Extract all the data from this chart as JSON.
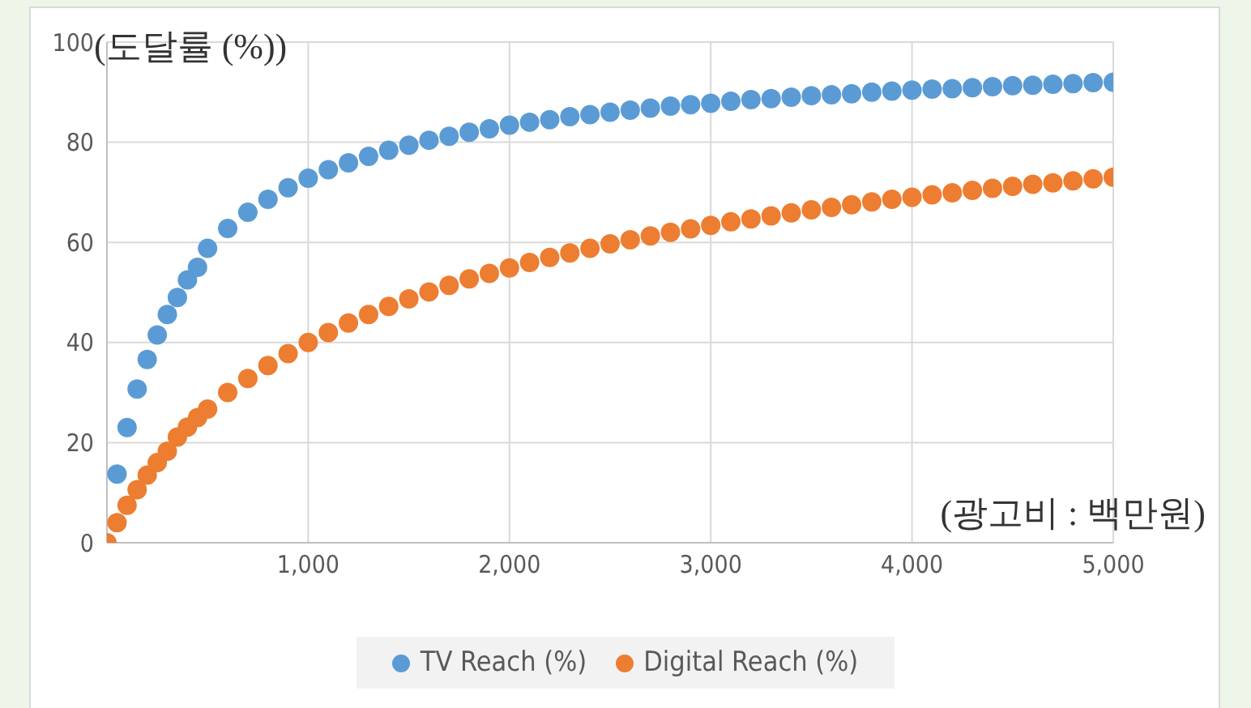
{
  "chart_data": {
    "type": "scatter",
    "xlabel": "(광고비 : 백만원)",
    "ylabel": "(도달률 (%))",
    "xlim": [
      0,
      5000
    ],
    "xticks": [
      {
        "value": 1000,
        "label": "1,000"
      },
      {
        "value": 2000,
        "label": "2,000"
      },
      {
        "value": 3000,
        "label": "3,000"
      },
      {
        "value": 4000,
        "label": "4,000"
      },
      {
        "value": 5000,
        "label": "5,000"
      }
    ],
    "ylim": [
      0,
      100
    ],
    "yticks": [
      0,
      20,
      40,
      60,
      80,
      100
    ],
    "grid": true,
    "legend": "bottom",
    "marker": "circle",
    "series": [
      {
        "name": "TV Reach (%)",
        "color": "#5b9bd5",
        "x": [
          50,
          100,
          150,
          200,
          250,
          300,
          350,
          400,
          450,
          500,
          600,
          700,
          800,
          900,
          1000,
          1100,
          1200,
          1300,
          1400,
          1500,
          1600,
          1700,
          1800,
          1900,
          2000,
          2100,
          2200,
          2300,
          2400,
          2500,
          2600,
          2700,
          2800,
          2900,
          3000,
          3100,
          3200,
          3300,
          3400,
          3500,
          3600,
          3700,
          3800,
          3900,
          4000,
          4100,
          4200,
          4300,
          4400,
          4500,
          4600,
          4700,
          4800,
          4900,
          5000
        ],
        "values": [
          13.7,
          23,
          30.7,
          36.6,
          41.5,
          45.6,
          49,
          52.5,
          55,
          58.8,
          62.8,
          66,
          68.6,
          70.9,
          72.8,
          74.5,
          75.9,
          77.2,
          78.4,
          79.4,
          80.4,
          81.2,
          82,
          82.7,
          83.4,
          84,
          84.5,
          85.1,
          85.5,
          86,
          86.4,
          86.8,
          87.2,
          87.5,
          87.8,
          88.2,
          88.5,
          88.7,
          89,
          89.3,
          89.5,
          89.7,
          90,
          90.2,
          90.4,
          90.6,
          90.7,
          90.9,
          91.1,
          91.3,
          91.4,
          91.6,
          91.7,
          91.9,
          92
        ]
      },
      {
        "name": "Digital Reach (%)",
        "color": "#ed7d31",
        "x": [
          0,
          50,
          100,
          150,
          200,
          250,
          300,
          350,
          400,
          450,
          500,
          600,
          700,
          800,
          900,
          1000,
          1100,
          1200,
          1300,
          1400,
          1500,
          1600,
          1700,
          1800,
          1900,
          2000,
          2100,
          2200,
          2300,
          2400,
          2500,
          2600,
          2700,
          2800,
          2900,
          3000,
          3100,
          3200,
          3300,
          3400,
          3500,
          3600,
          3700,
          3800,
          3900,
          4000,
          4100,
          4200,
          4300,
          4400,
          4500,
          4600,
          4700,
          4800,
          4900,
          5000
        ],
        "values": [
          0,
          4,
          7.5,
          10.6,
          13.5,
          16,
          18.3,
          21.1,
          23.1,
          25,
          26.7,
          30,
          32.8,
          35.4,
          37.8,
          40,
          42,
          43.9,
          45.6,
          47.2,
          48.7,
          50.1,
          51.4,
          52.7,
          53.8,
          54.9,
          56,
          57,
          57.9,
          58.8,
          59.7,
          60.5,
          61.3,
          62,
          62.7,
          63.4,
          64.1,
          64.7,
          65.3,
          65.9,
          66.5,
          67,
          67.5,
          68.1,
          68.6,
          69,
          69.5,
          69.9,
          70.4,
          70.8,
          71.2,
          71.6,
          71.9,
          72.3,
          72.7,
          73
        ]
      }
    ]
  }
}
